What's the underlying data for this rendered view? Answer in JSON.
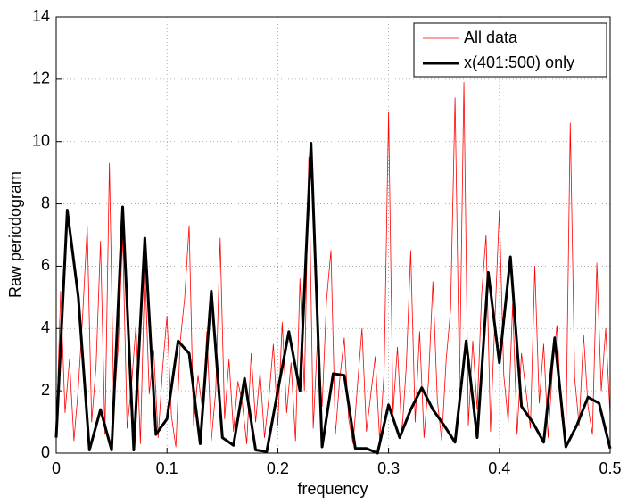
{
  "chart_data": {
    "type": "line",
    "xlabel": "frequency",
    "ylabel": "Raw periodogram",
    "xlim": [
      0,
      0.5
    ],
    "ylim": [
      0,
      14
    ],
    "xticks": [
      0,
      0.1,
      0.2,
      0.3,
      0.4,
      0.5
    ],
    "yticks": [
      0,
      2,
      4,
      6,
      8,
      10,
      12,
      14
    ],
    "grid": true,
    "legend": "northeast",
    "series": [
      {
        "name": "All data",
        "color": "#ff0000",
        "width": 0.8,
        "x": [
          0,
          0.004,
          0.008,
          0.012,
          0.016,
          0.02,
          0.024,
          0.028,
          0.032,
          0.036,
          0.04,
          0.044,
          0.048,
          0.052,
          0.056,
          0.06,
          0.064,
          0.068,
          0.072,
          0.076,
          0.08,
          0.084,
          0.088,
          0.092,
          0.096,
          0.1,
          0.104,
          0.108,
          0.112,
          0.116,
          0.12,
          0.124,
          0.128,
          0.132,
          0.136,
          0.14,
          0.144,
          0.148,
          0.152,
          0.156,
          0.16,
          0.164,
          0.168,
          0.172,
          0.176,
          0.18,
          0.184,
          0.188,
          0.192,
          0.196,
          0.2,
          0.204,
          0.208,
          0.212,
          0.216,
          0.22,
          0.224,
          0.228,
          0.232,
          0.236,
          0.24,
          0.244,
          0.248,
          0.252,
          0.256,
          0.26,
          0.264,
          0.268,
          0.272,
          0.276,
          0.28,
          0.284,
          0.288,
          0.292,
          0.296,
          0.3,
          0.304,
          0.308,
          0.312,
          0.316,
          0.32,
          0.324,
          0.328,
          0.332,
          0.336,
          0.34,
          0.344,
          0.348,
          0.352,
          0.356,
          0.36,
          0.364,
          0.368,
          0.372,
          0.376,
          0.38,
          0.384,
          0.388,
          0.392,
          0.396,
          0.4,
          0.404,
          0.408,
          0.412,
          0.416,
          0.42,
          0.424,
          0.428,
          0.432,
          0.436,
          0.44,
          0.444,
          0.448,
          0.452,
          0.456,
          0.46,
          0.464,
          0.468,
          0.472,
          0.476,
          0.48,
          0.484,
          0.488,
          0.492,
          0.496,
          0.5
        ],
        "values": [
          0.5,
          5.2,
          1.3,
          3.0,
          0.4,
          2.1,
          4.5,
          7.3,
          1.0,
          2.8,
          6.8,
          0.6,
          9.3,
          1.5,
          3.4,
          7.0,
          0.8,
          2.2,
          4.1,
          0.3,
          6.0,
          1.9,
          3.3,
          0.5,
          2.7,
          4.4,
          1.2,
          0.2,
          3.6,
          5.0,
          7.3,
          0.9,
          2.5,
          1.4,
          3.9,
          0.4,
          2.0,
          6.9,
          1.1,
          3.0,
          0.7,
          2.3,
          1.6,
          0.3,
          3.2,
          1.0,
          2.6,
          0.5,
          1.8,
          3.5,
          0.9,
          4.2,
          1.3,
          2.9,
          0.4,
          5.6,
          2.0,
          9.5,
          0.8,
          3.8,
          1.5,
          4.9,
          6.5,
          0.6,
          2.4,
          3.7,
          1.1,
          0.3,
          2.2,
          4.0,
          0.7,
          1.9,
          3.1,
          0.4,
          2.6,
          10.95,
          1.3,
          3.4,
          0.6,
          2.8,
          6.5,
          1.0,
          3.9,
          0.5,
          2.3,
          5.5,
          1.7,
          0.4,
          3.0,
          4.6,
          11.4,
          2.2,
          11.9,
          0.9,
          3.6,
          1.4,
          5.1,
          7.0,
          0.7,
          4.3,
          7.8,
          2.5,
          1.0,
          4.8,
          0.6,
          3.2,
          2.0,
          0.8,
          6.0,
          1.6,
          3.5,
          0.5,
          2.7,
          4.1,
          1.2,
          0.3,
          10.6,
          2.4,
          0.9,
          3.8,
          1.5,
          0.6,
          6.1,
          2.0,
          4.0,
          1.2
        ]
      },
      {
        "name": "x(401:500) only",
        "color": "#000000",
        "width": 3,
        "x": [
          0,
          0.01,
          0.02,
          0.03,
          0.04,
          0.05,
          0.06,
          0.07,
          0.08,
          0.09,
          0.1,
          0.11,
          0.12,
          0.13,
          0.14,
          0.15,
          0.16,
          0.17,
          0.18,
          0.19,
          0.2,
          0.21,
          0.22,
          0.23,
          0.24,
          0.25,
          0.26,
          0.27,
          0.28,
          0.29,
          0.3,
          0.31,
          0.32,
          0.33,
          0.34,
          0.35,
          0.36,
          0.37,
          0.38,
          0.39,
          0.4,
          0.41,
          0.42,
          0.43,
          0.44,
          0.45,
          0.46,
          0.47,
          0.48,
          0.49,
          0.5
        ],
        "values": [
          0.5,
          7.8,
          5.0,
          0.1,
          1.4,
          0.1,
          7.9,
          0.1,
          6.9,
          0.6,
          1.1,
          3.6,
          3.2,
          0.3,
          5.2,
          0.5,
          0.25,
          2.4,
          0.1,
          0.05,
          2.0,
          3.9,
          2.0,
          9.95,
          0.2,
          2.55,
          2.5,
          0.15,
          0.15,
          0.0,
          1.55,
          0.5,
          1.4,
          2.1,
          1.4,
          0.9,
          0.35,
          3.6,
          0.5,
          5.8,
          2.9,
          6.3,
          1.5,
          1.0,
          0.35,
          3.7,
          0.2,
          0.9,
          1.8,
          1.6,
          0.15
        ]
      }
    ]
  }
}
